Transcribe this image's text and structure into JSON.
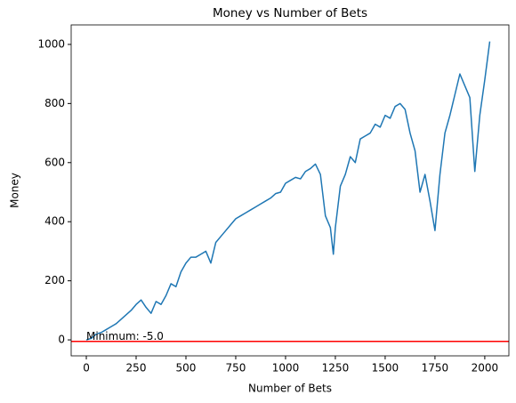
{
  "chart_data": {
    "type": "line",
    "title": "Money vs Number of Bets",
    "x_label": "Number of Bets",
    "y_label": "Money",
    "x": [
      0,
      25,
      50,
      75,
      100,
      125,
      150,
      175,
      200,
      225,
      250,
      275,
      300,
      325,
      350,
      375,
      400,
      425,
      450,
      475,
      500,
      525,
      550,
      575,
      600,
      625,
      650,
      675,
      700,
      725,
      750,
      775,
      800,
      825,
      850,
      875,
      900,
      925,
      950,
      975,
      1000,
      1025,
      1050,
      1075,
      1100,
      1125,
      1150,
      1175,
      1200,
      1225,
      1240,
      1250,
      1275,
      1300,
      1325,
      1350,
      1375,
      1400,
      1425,
      1450,
      1475,
      1500,
      1525,
      1550,
      1575,
      1600,
      1625,
      1650,
      1675,
      1700,
      1725,
      1750,
      1775,
      1800,
      1825,
      1850,
      1875,
      1900,
      1925,
      1950,
      1975,
      2000,
      2025
    ],
    "series": [
      {
        "name": "Money",
        "color": "#1f77b4",
        "values": [
          0,
          5,
          20,
          25,
          35,
          45,
          55,
          70,
          85,
          100,
          120,
          135,
          110,
          90,
          130,
          120,
          150,
          190,
          180,
          230,
          260,
          280,
          280,
          290,
          300,
          260,
          330,
          350,
          370,
          390,
          410,
          420,
          430,
          440,
          450,
          460,
          470,
          480,
          495,
          500,
          530,
          540,
          550,
          545,
          570,
          580,
          595,
          560,
          420,
          380,
          290,
          380,
          520,
          560,
          620,
          600,
          680,
          690,
          700,
          730,
          720,
          760,
          750,
          790,
          800,
          780,
          700,
          640,
          500,
          560,
          470,
          370,
          560,
          700,
          760,
          830,
          900,
          860,
          820,
          570,
          760,
          880,
          1010
        ]
      }
    ],
    "hline": {
      "value": -5,
      "color": "#ff0000"
    },
    "annotation": {
      "text": "Minimum: -5.0",
      "x": 0,
      "y": -5
    },
    "xlim": [
      -76,
      2121
    ],
    "ylim": [
      -54,
      1066
    ],
    "xticks": [
      0,
      250,
      500,
      750,
      1000,
      1250,
      1500,
      1750,
      2000
    ],
    "yticks": [
      0,
      200,
      400,
      600,
      800,
      1000
    ]
  }
}
